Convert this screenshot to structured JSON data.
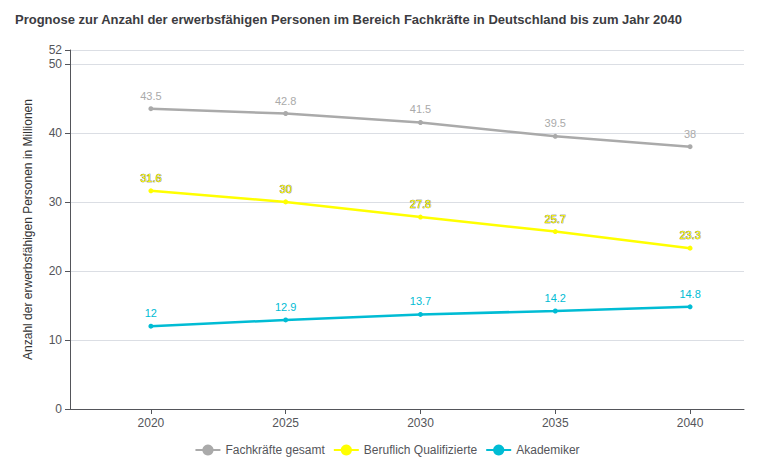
{
  "chart_data": {
    "type": "line",
    "title": "Prognose zur Anzahl der erwerbsfähigen Personen im Bereich Fachkräfte in Deutschland bis zum Jahr 2040",
    "ylabel": "Anzahl der erwerbsfähigen Personen in Millionen",
    "x": [
      2020,
      2025,
      2030,
      2035,
      2040
    ],
    "series": [
      {
        "name": "Fachkräfte gesamt",
        "color": "#aaaaaa",
        "values": [
          43.5,
          42.8,
          41.5,
          39.5,
          38
        ]
      },
      {
        "name": "Beruflich Qualifizierte",
        "color": "#ffff00",
        "values": [
          31.6,
          30,
          27.8,
          25.7,
          23.3
        ]
      },
      {
        "name": "Akademiker",
        "color": "#00bcd4",
        "values": [
          12,
          12.9,
          13.7,
          14.2,
          14.8
        ]
      }
    ],
    "xlim": [
      2017,
      2042
    ],
    "xticks": [
      2020,
      2025,
      2030,
      2035,
      2040
    ],
    "ylim": [
      0,
      52
    ],
    "yticks": [
      0,
      10,
      20,
      30,
      40,
      50
    ],
    "grid": true,
    "legend": "bottom",
    "data_labels": true
  }
}
